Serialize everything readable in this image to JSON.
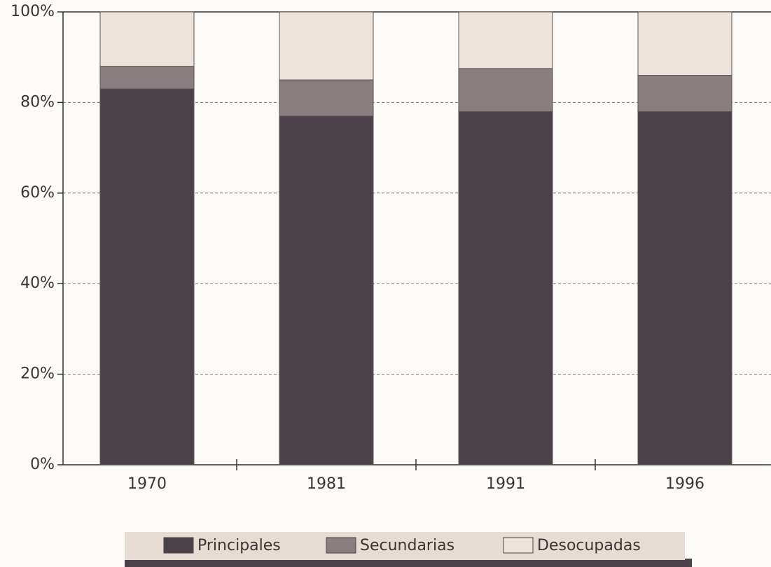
{
  "chart_data": {
    "type": "stacked_bar",
    "categories": [
      "1970",
      "1981",
      "1991",
      "1996"
    ],
    "series": [
      {
        "name": "Principales",
        "color": "#4a4248",
        "values": [
          83,
          77,
          78,
          78
        ]
      },
      {
        "name": "Secundarias",
        "color": "#8a7e81",
        "values": [
          5,
          8,
          9.5,
          8
        ]
      },
      {
        "name": "Desocupadas",
        "color": "#ede3dc",
        "values": [
          12,
          15,
          12.5,
          14
        ]
      }
    ],
    "ylim": [
      0,
      100
    ],
    "yticks": [
      {
        "value": 0,
        "label": "0%"
      },
      {
        "value": 20,
        "label": "20%"
      },
      {
        "value": 40,
        "label": "40%"
      },
      {
        "value": 60,
        "label": "60%"
      },
      {
        "value": 80,
        "label": "80%"
      },
      {
        "value": 100,
        "label": "100%"
      }
    ],
    "grid": true
  }
}
